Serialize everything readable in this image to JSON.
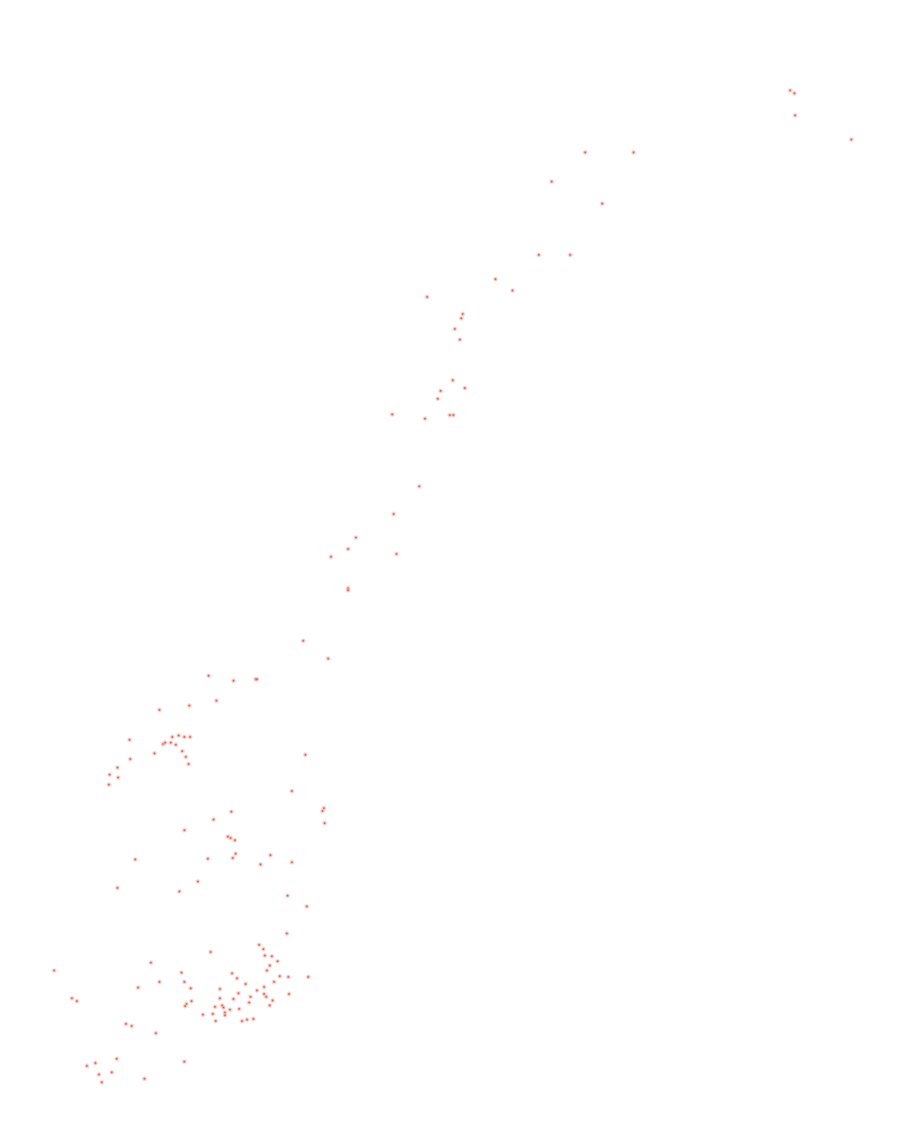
{
  "map": {
    "marker_style": {
      "halo_color": "#f4b4ac",
      "core_color": "#c0392b"
    }
  }
}
